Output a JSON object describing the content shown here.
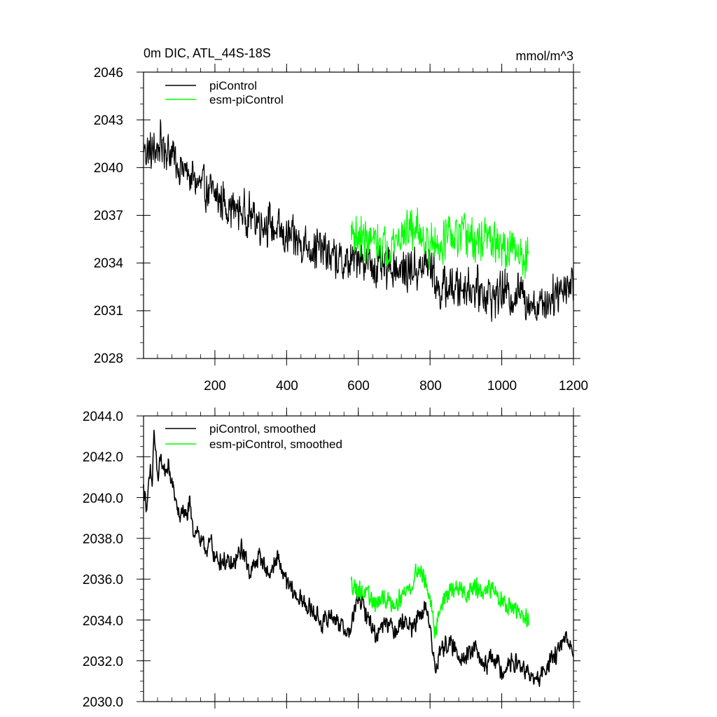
{
  "colors": {
    "piControl": "#000000",
    "esm_piControl": "#00ff00",
    "axes": "#000000",
    "background": "#ffffff"
  },
  "chart_data": [
    {
      "type": "line",
      "title": "0m DIC, ATL_44S-18S",
      "units": "mmol/m^3",
      "xlim": [
        1,
        1200
      ],
      "ylim": [
        2028,
        2046
      ],
      "yticks": [
        2028,
        2031,
        2034,
        2037,
        2040,
        2043,
        2046
      ],
      "ytick_labels": [
        "2028",
        "2031",
        "2034",
        "2037",
        "2040",
        "2043",
        "2046"
      ],
      "xticks": [
        200,
        400,
        600,
        800,
        1000,
        1200
      ],
      "xtick_labels": [
        "200",
        "400",
        "600",
        "800",
        "1000",
        "1200"
      ],
      "grid": false,
      "legend_position": "top-left",
      "series": [
        {
          "name": "piControl",
          "color": "#000000",
          "x": [
            1,
            25,
            50,
            75,
            100,
            125,
            150,
            175,
            200,
            225,
            250,
            275,
            300,
            325,
            350,
            375,
            400,
            425,
            450,
            475,
            500,
            525,
            550,
            575,
            600,
            625,
            650,
            675,
            700,
            725,
            750,
            775,
            800,
            825,
            850,
            875,
            900,
            925,
            950,
            975,
            1000,
            1025,
            1050,
            1075,
            1100,
            1125,
            1150,
            1175,
            1200
          ],
          "y": [
            2041.2,
            2040.9,
            2041.5,
            2041.0,
            2040.1,
            2039.6,
            2039.0,
            2038.6,
            2038.2,
            2037.8,
            2037.4,
            2037.2,
            2037.0,
            2036.6,
            2036.5,
            2036.0,
            2035.6,
            2035.4,
            2035.2,
            2035.0,
            2034.8,
            2034.4,
            2034.0,
            2033.9,
            2034.6,
            2034.0,
            2033.7,
            2033.5,
            2033.9,
            2033.4,
            2033.7,
            2033.5,
            2034.2,
            2032.2,
            2032.5,
            2032.4,
            2032.6,
            2032.4,
            2032.2,
            2031.8,
            2032.3,
            2031.9,
            2032.2,
            2031.7,
            2031.3,
            2031.6,
            2032.2,
            2032.6,
            2032.7
          ],
          "noise_amplitude": 1.6
        },
        {
          "name": "esm-piControl",
          "color": "#00ff00",
          "x": [
            580,
            600,
            625,
            650,
            675,
            700,
            725,
            750,
            775,
            800,
            825,
            850,
            875,
            900,
            925,
            950,
            975,
            1000,
            1025,
            1050,
            1075
          ],
          "y": [
            2036.0,
            2035.6,
            2035.4,
            2035.2,
            2035.0,
            2035.4,
            2035.8,
            2036.2,
            2036.0,
            2035.0,
            2035.2,
            2035.6,
            2035.4,
            2035.8,
            2035.2,
            2035.6,
            2035.3,
            2034.9,
            2034.7,
            2034.6,
            2034.4
          ],
          "noise_amplitude": 1.6
        }
      ]
    },
    {
      "type": "line",
      "xlim": [
        1,
        1200
      ],
      "ylim": [
        2030.0,
        2044.0
      ],
      "yticks": [
        2030,
        2032,
        2034,
        2036,
        2038,
        2040,
        2042,
        2044
      ],
      "ytick_labels": [
        "2030.0",
        "2032.0",
        "2034.0",
        "2036.0",
        "2038.0",
        "2040.0",
        "2042.0",
        "2044.0"
      ],
      "xticks": [
        200,
        400,
        600,
        800,
        1000,
        1200
      ],
      "grid": false,
      "legend_position": "top-left",
      "series": [
        {
          "name": "piControl, smoothed",
          "color": "#000000",
          "x": [
            1,
            10,
            20,
            25,
            30,
            40,
            50,
            60,
            70,
            80,
            90,
            100,
            110,
            120,
            130,
            140,
            150,
            160,
            170,
            180,
            190,
            200,
            225,
            250,
            275,
            300,
            325,
            350,
            375,
            400,
            425,
            450,
            475,
            500,
            525,
            550,
            575,
            600,
            625,
            650,
            675,
            700,
            725,
            750,
            775,
            790,
            800,
            815,
            825,
            850,
            875,
            900,
            925,
            950,
            975,
            1000,
            1025,
            1050,
            1075,
            1100,
            1125,
            1150,
            1175,
            1200
          ],
          "y": [
            2040.5,
            2039.6,
            2041.2,
            2040.6,
            2043.2,
            2041.0,
            2041.8,
            2041.3,
            2041.5,
            2040.7,
            2040.0,
            2038.9,
            2039.5,
            2039.0,
            2039.6,
            2038.3,
            2038.5,
            2037.8,
            2037.6,
            2037.5,
            2037.9,
            2037.0,
            2036.9,
            2036.6,
            2037.5,
            2036.3,
            2037.2,
            2036.2,
            2037.0,
            2035.8,
            2035.2,
            2034.8,
            2034.4,
            2033.8,
            2034.3,
            2033.8,
            2033.3,
            2035.2,
            2034.2,
            2033.2,
            2034.1,
            2033.5,
            2034.0,
            2033.6,
            2034.2,
            2034.7,
            2033.6,
            2031.4,
            2032.4,
            2032.9,
            2032.4,
            2032.1,
            2032.7,
            2031.6,
            2032.3,
            2031.5,
            2031.9,
            2031.8,
            2031.3,
            2031.0,
            2031.7,
            2032.3,
            2033.0,
            2032.6
          ],
          "noise_amplitude": 0.55
        },
        {
          "name": "esm-piControl, smoothed",
          "color": "#00ff00",
          "x": [
            580,
            600,
            625,
            650,
            675,
            700,
            725,
            750,
            765,
            775,
            790,
            800,
            815,
            825,
            850,
            875,
            900,
            925,
            950,
            975,
            1000,
            1025,
            1050,
            1075
          ],
          "y": [
            2035.8,
            2035.5,
            2035.2,
            2034.8,
            2035.0,
            2034.8,
            2035.3,
            2035.7,
            2036.6,
            2036.3,
            2035.8,
            2034.8,
            2033.4,
            2034.5,
            2035.3,
            2035.6,
            2035.3,
            2035.6,
            2035.2,
            2035.6,
            2035.0,
            2034.6,
            2034.3,
            2034.0
          ],
          "noise_amplitude": 0.55
        }
      ]
    }
  ]
}
